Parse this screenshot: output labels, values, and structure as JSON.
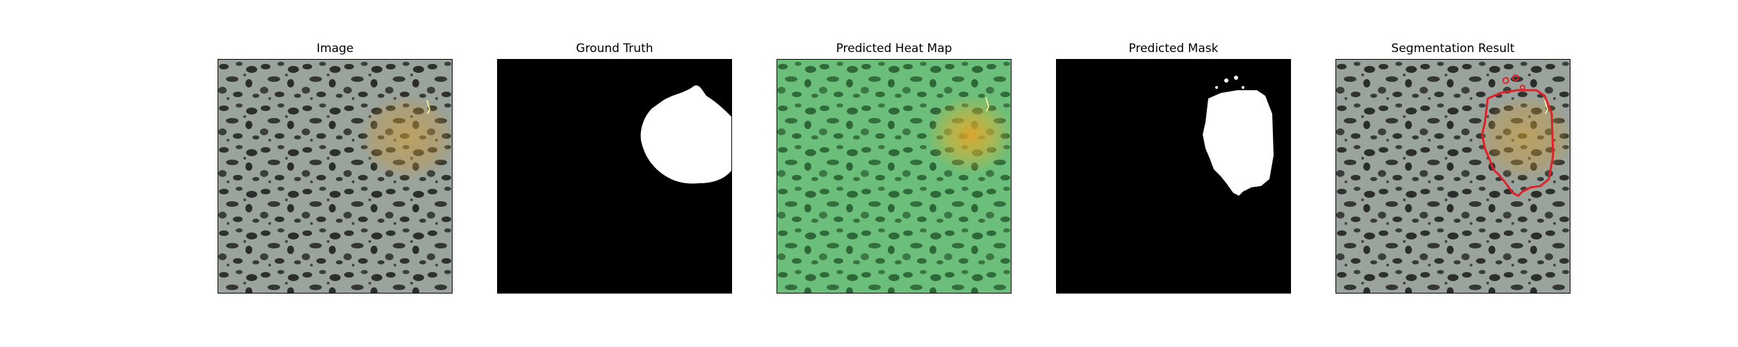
{
  "figure": {
    "panels": [
      {
        "title": "Image"
      },
      {
        "title": "Ground Truth"
      },
      {
        "title": "Predicted Heat Map"
      },
      {
        "title": "Predicted Mask"
      },
      {
        "title": "Segmentation Result"
      }
    ],
    "colors": {
      "texture_base": "#9aa39c",
      "texture_spot": "#2d302d",
      "heat_base": "#6cbf7a",
      "heat_hot": "#e0b030",
      "mask_bg": "#000000",
      "mask_fg": "#ffffff",
      "contour": "#e0202a"
    }
  }
}
